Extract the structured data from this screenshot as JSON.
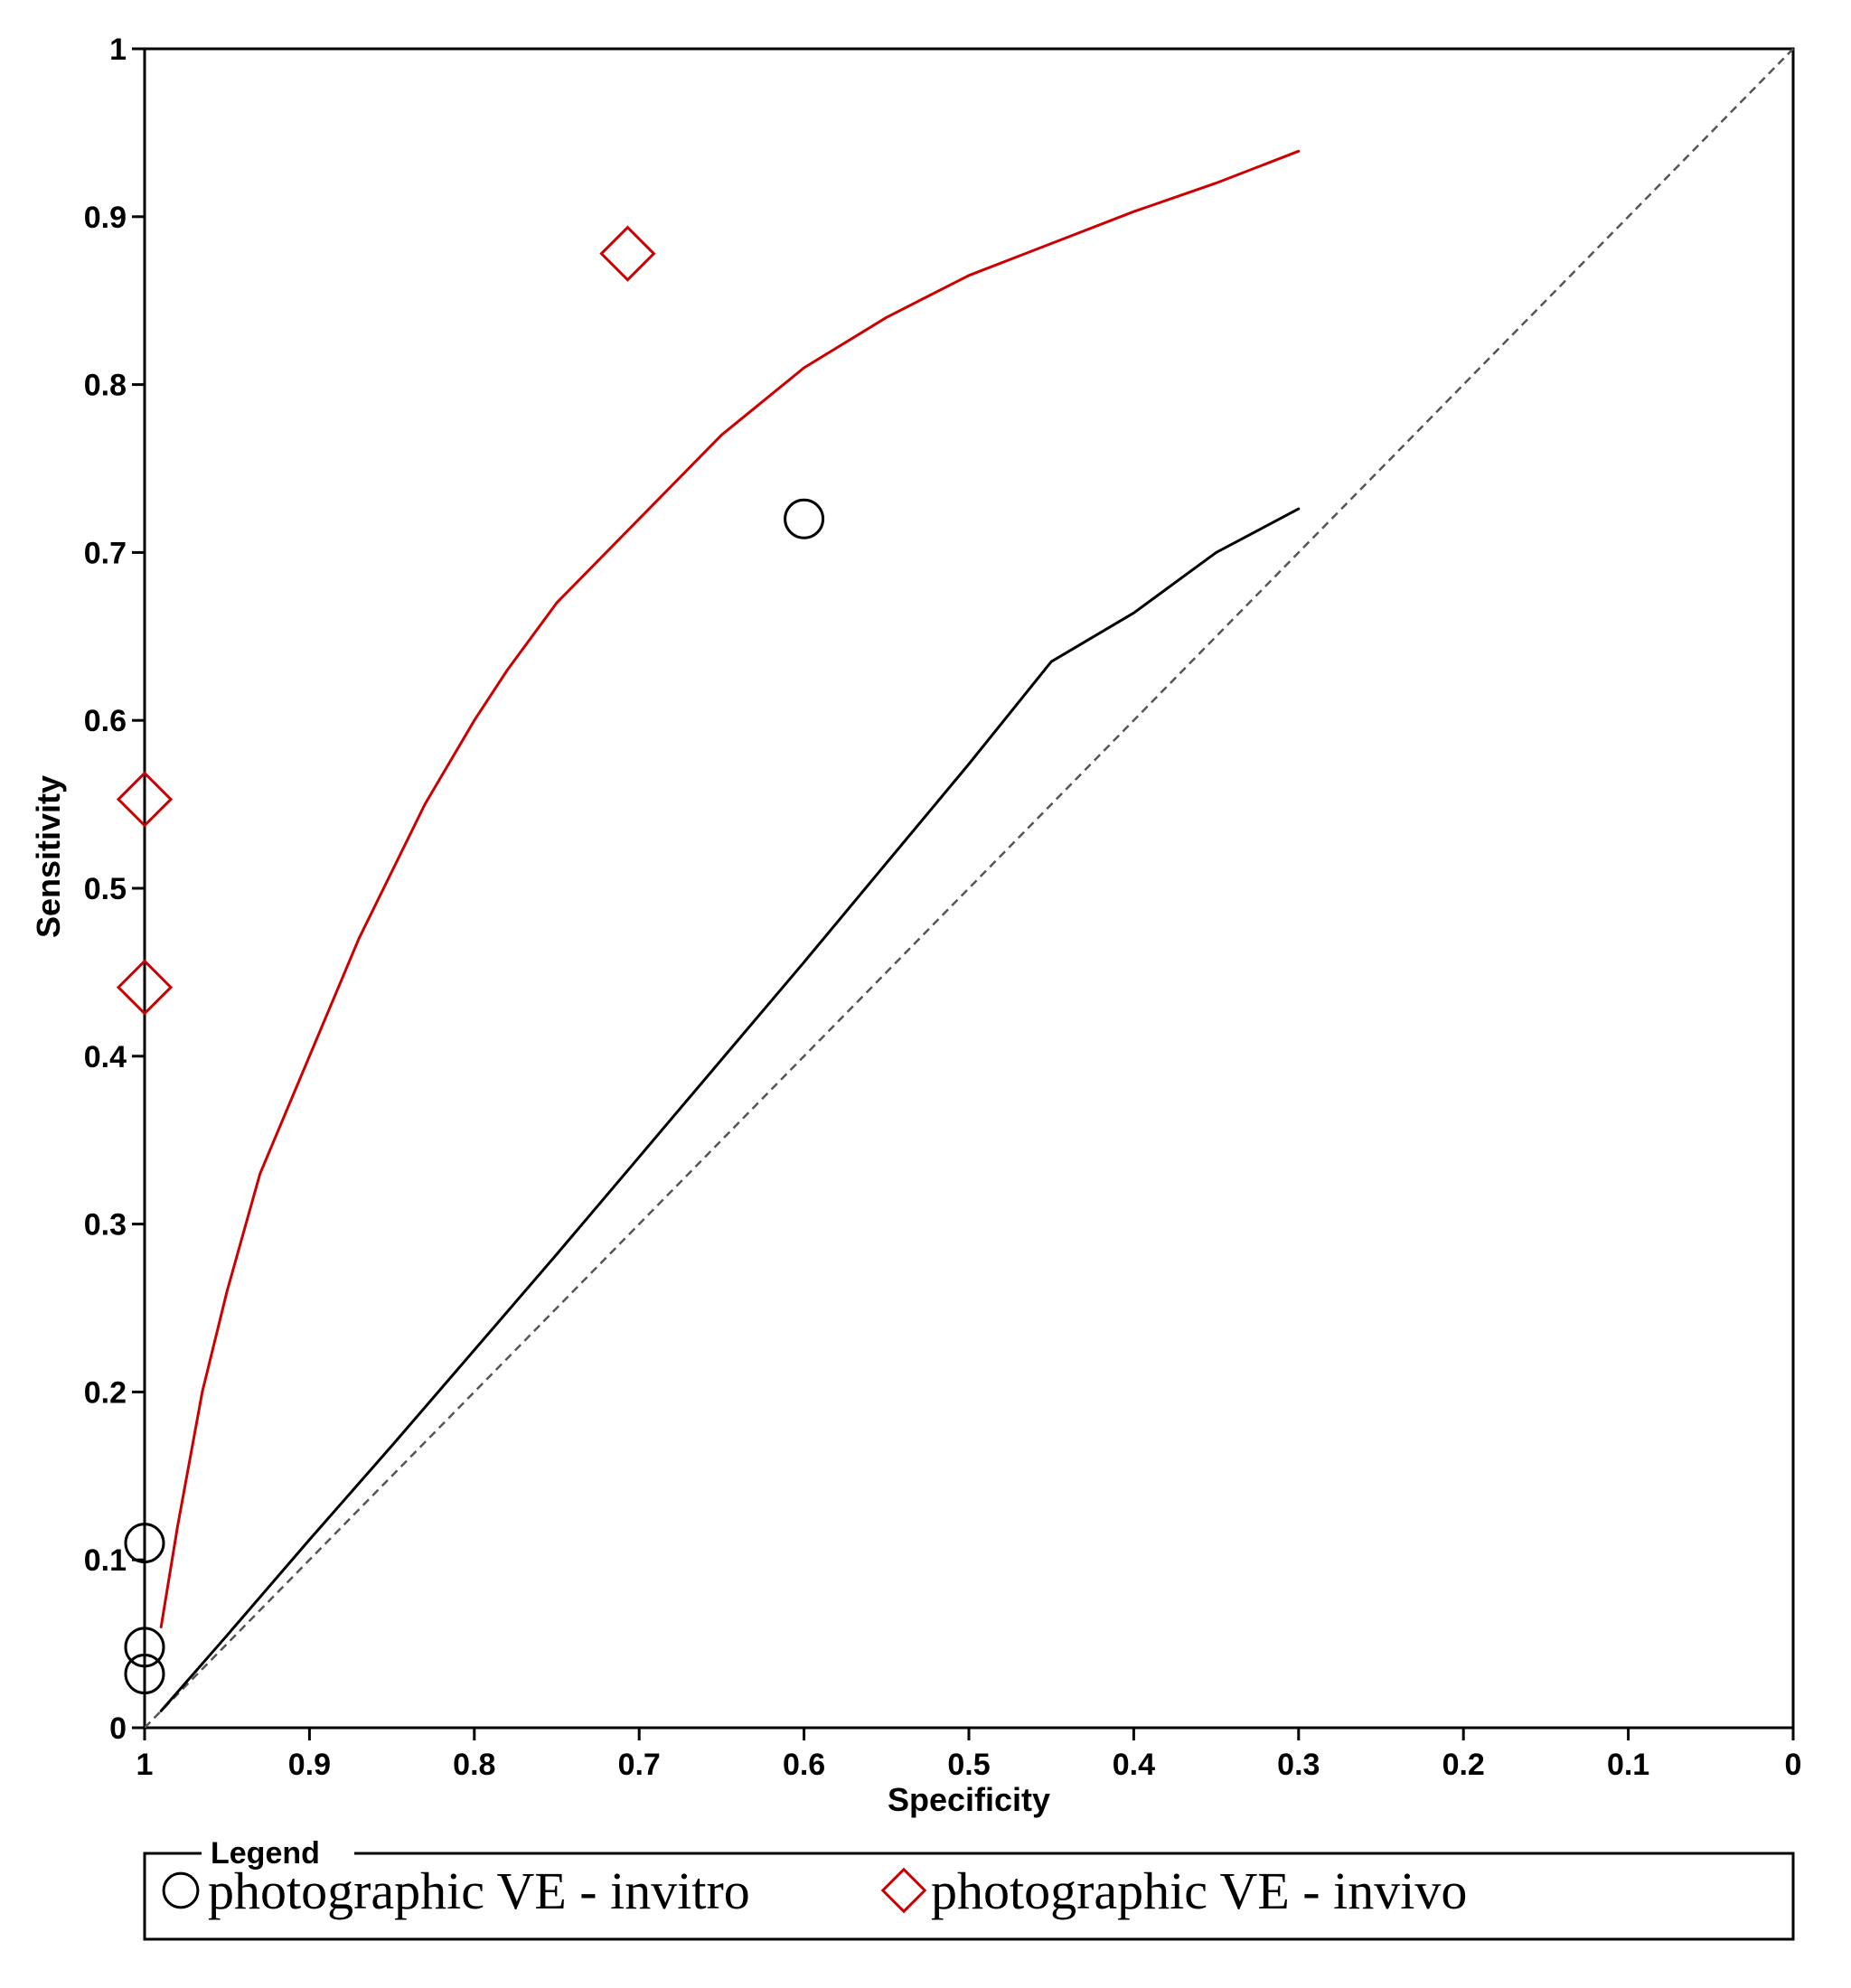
{
  "chart_data": {
    "type": "scatter",
    "xlabel": "Specificity",
    "ylabel": "Sensitivity",
    "xlim": [
      1,
      0
    ],
    "ylim": [
      0,
      1
    ],
    "x_ticks": [
      "1",
      "0.9",
      "0.8",
      "0.7",
      "0.6",
      "0.5",
      "0.4",
      "0.3",
      "0.2",
      "0.1",
      "0"
    ],
    "y_ticks": [
      "0",
      "0.1",
      "0.2",
      "0.3",
      "0.4",
      "0.5",
      "0.6",
      "0.7",
      "0.8",
      "0.9",
      "1"
    ],
    "grid": false,
    "legend": {
      "title": "Legend",
      "placement": "bottom",
      "entries": [
        {
          "label": "photographic VE - invitro",
          "marker": "circle",
          "color": "#000000"
        },
        {
          "label": "photographic VE - invivo",
          "marker": "diamond",
          "color": "#cc0000"
        }
      ]
    },
    "series": [
      {
        "key": "invitro",
        "marker": "circle",
        "color": "#000000",
        "points": [
          [
            0.6,
            0.72
          ],
          [
            1.0,
            0.11
          ],
          [
            1.0,
            0.048
          ],
          [
            1.0,
            0.032
          ]
        ],
        "curve": {
          "color": "#000000",
          "points": [
            [
              0.99,
              0.01
            ],
            [
              0.95,
              0.055
            ],
            [
              0.9,
              0.112
            ],
            [
              0.85,
              0.168
            ],
            [
              0.8,
              0.225
            ],
            [
              0.75,
              0.282
            ],
            [
              0.7,
              0.34
            ],
            [
              0.65,
              0.398
            ],
            [
              0.6,
              0.456
            ],
            [
              0.55,
              0.515
            ],
            [
              0.5,
              0.574
            ],
            [
              0.45,
              0.635
            ],
            [
              0.4,
              0.664
            ],
            [
              0.35,
              0.7
            ],
            [
              0.3,
              0.726
            ]
          ]
        }
      },
      {
        "key": "invivo",
        "marker": "diamond",
        "color": "#cc0000",
        "points": [
          [
            0.707,
            0.878
          ],
          [
            1.0,
            0.553
          ],
          [
            1.0,
            0.441
          ]
        ],
        "curve": {
          "color": "#cc0000",
          "points": [
            [
              0.99,
              0.06
            ],
            [
              0.98,
              0.12
            ],
            [
              0.965,
              0.2
            ],
            [
              0.95,
              0.26
            ],
            [
              0.93,
              0.33
            ],
            [
              0.9,
              0.4
            ],
            [
              0.87,
              0.47
            ],
            [
              0.83,
              0.55
            ],
            [
              0.8,
              0.6
            ],
            [
              0.78,
              0.63
            ],
            [
              0.75,
              0.67
            ],
            [
              0.7,
              0.72
            ],
            [
              0.65,
              0.77
            ],
            [
              0.6,
              0.81
            ],
            [
              0.55,
              0.84
            ],
            [
              0.5,
              0.865
            ],
            [
              0.45,
              0.884
            ],
            [
              0.4,
              0.903
            ],
            [
              0.35,
              0.92
            ],
            [
              0.3,
              0.939
            ]
          ]
        }
      }
    ],
    "reference_line": {
      "style": "dashed",
      "color": "#555555",
      "from": [
        1,
        0
      ],
      "to": [
        0,
        1
      ]
    }
  }
}
